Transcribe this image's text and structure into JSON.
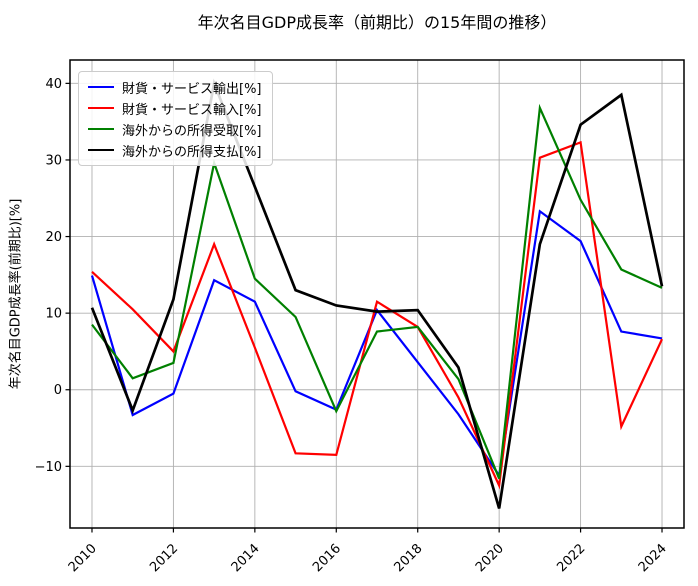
{
  "chart_data": {
    "type": "line",
    "title": "年次名目GDP成長率（前期比）の15年間の推移）",
    "ylabel": "年次名目GDP成長率(前期比)[%]",
    "xlabel": "",
    "x": [
      2010,
      2011,
      2012,
      2013,
      2014,
      2015,
      2016,
      2017,
      2018,
      2019,
      2020,
      2021,
      2022,
      2023,
      2024
    ],
    "series": [
      {
        "name": "財貨・サービス輸出[%]",
        "color": "#0000ff",
        "lw": 2.2,
        "values": [
          14.9,
          -3.3,
          -0.5,
          14.3,
          11.5,
          -0.2,
          -2.6,
          10.4,
          3.6,
          -3.2,
          -11.2,
          23.3,
          19.4,
          7.6,
          6.7
        ]
      },
      {
        "name": "財貨・サービス輸入[%]",
        "color": "#ff0000",
        "lw": 2.2,
        "values": [
          15.4,
          10.5,
          5.0,
          19.0,
          5.5,
          -8.3,
          -8.5,
          11.5,
          8.2,
          -1.0,
          -12.5,
          30.3,
          32.3,
          -4.8,
          6.6
        ]
      },
      {
        "name": "海外からの所得受取[%]",
        "color": "#008000",
        "lw": 2.2,
        "values": [
          8.5,
          1.5,
          3.5,
          29.6,
          14.5,
          9.5,
          -2.8,
          7.6,
          8.2,
          1.4,
          -11.6,
          36.8,
          24.8,
          15.7,
          13.3
        ]
      },
      {
        "name": "海外からの所得支払[%]",
        "color": "#000000",
        "lw": 2.7,
        "values": [
          10.7,
          -2.7,
          11.8,
          40.0,
          26.5,
          13.0,
          11.0,
          10.2,
          10.4,
          2.9,
          -15.5,
          19.0,
          34.6,
          38.5,
          13.5
        ]
      }
    ],
    "xticks": {
      "values": [
        2010,
        2012,
        2014,
        2016,
        2018,
        2020,
        2022,
        2024
      ],
      "labels": [
        "2010",
        "2012",
        "2014",
        "2016",
        "2018",
        "2020",
        "2022",
        "2024"
      ]
    },
    "yticks": {
      "values": [
        40,
        30,
        20,
        10,
        0,
        -10
      ],
      "labels": [
        "40",
        "30",
        "20",
        "10",
        "0",
        "−10"
      ]
    },
    "xlim": [
      2009.46,
      2024.54
    ],
    "ylim": [
      -18.05,
      43.05
    ],
    "grid": true,
    "grid_color": "#b0b0b0",
    "legend": {
      "position": "upper-left"
    }
  }
}
